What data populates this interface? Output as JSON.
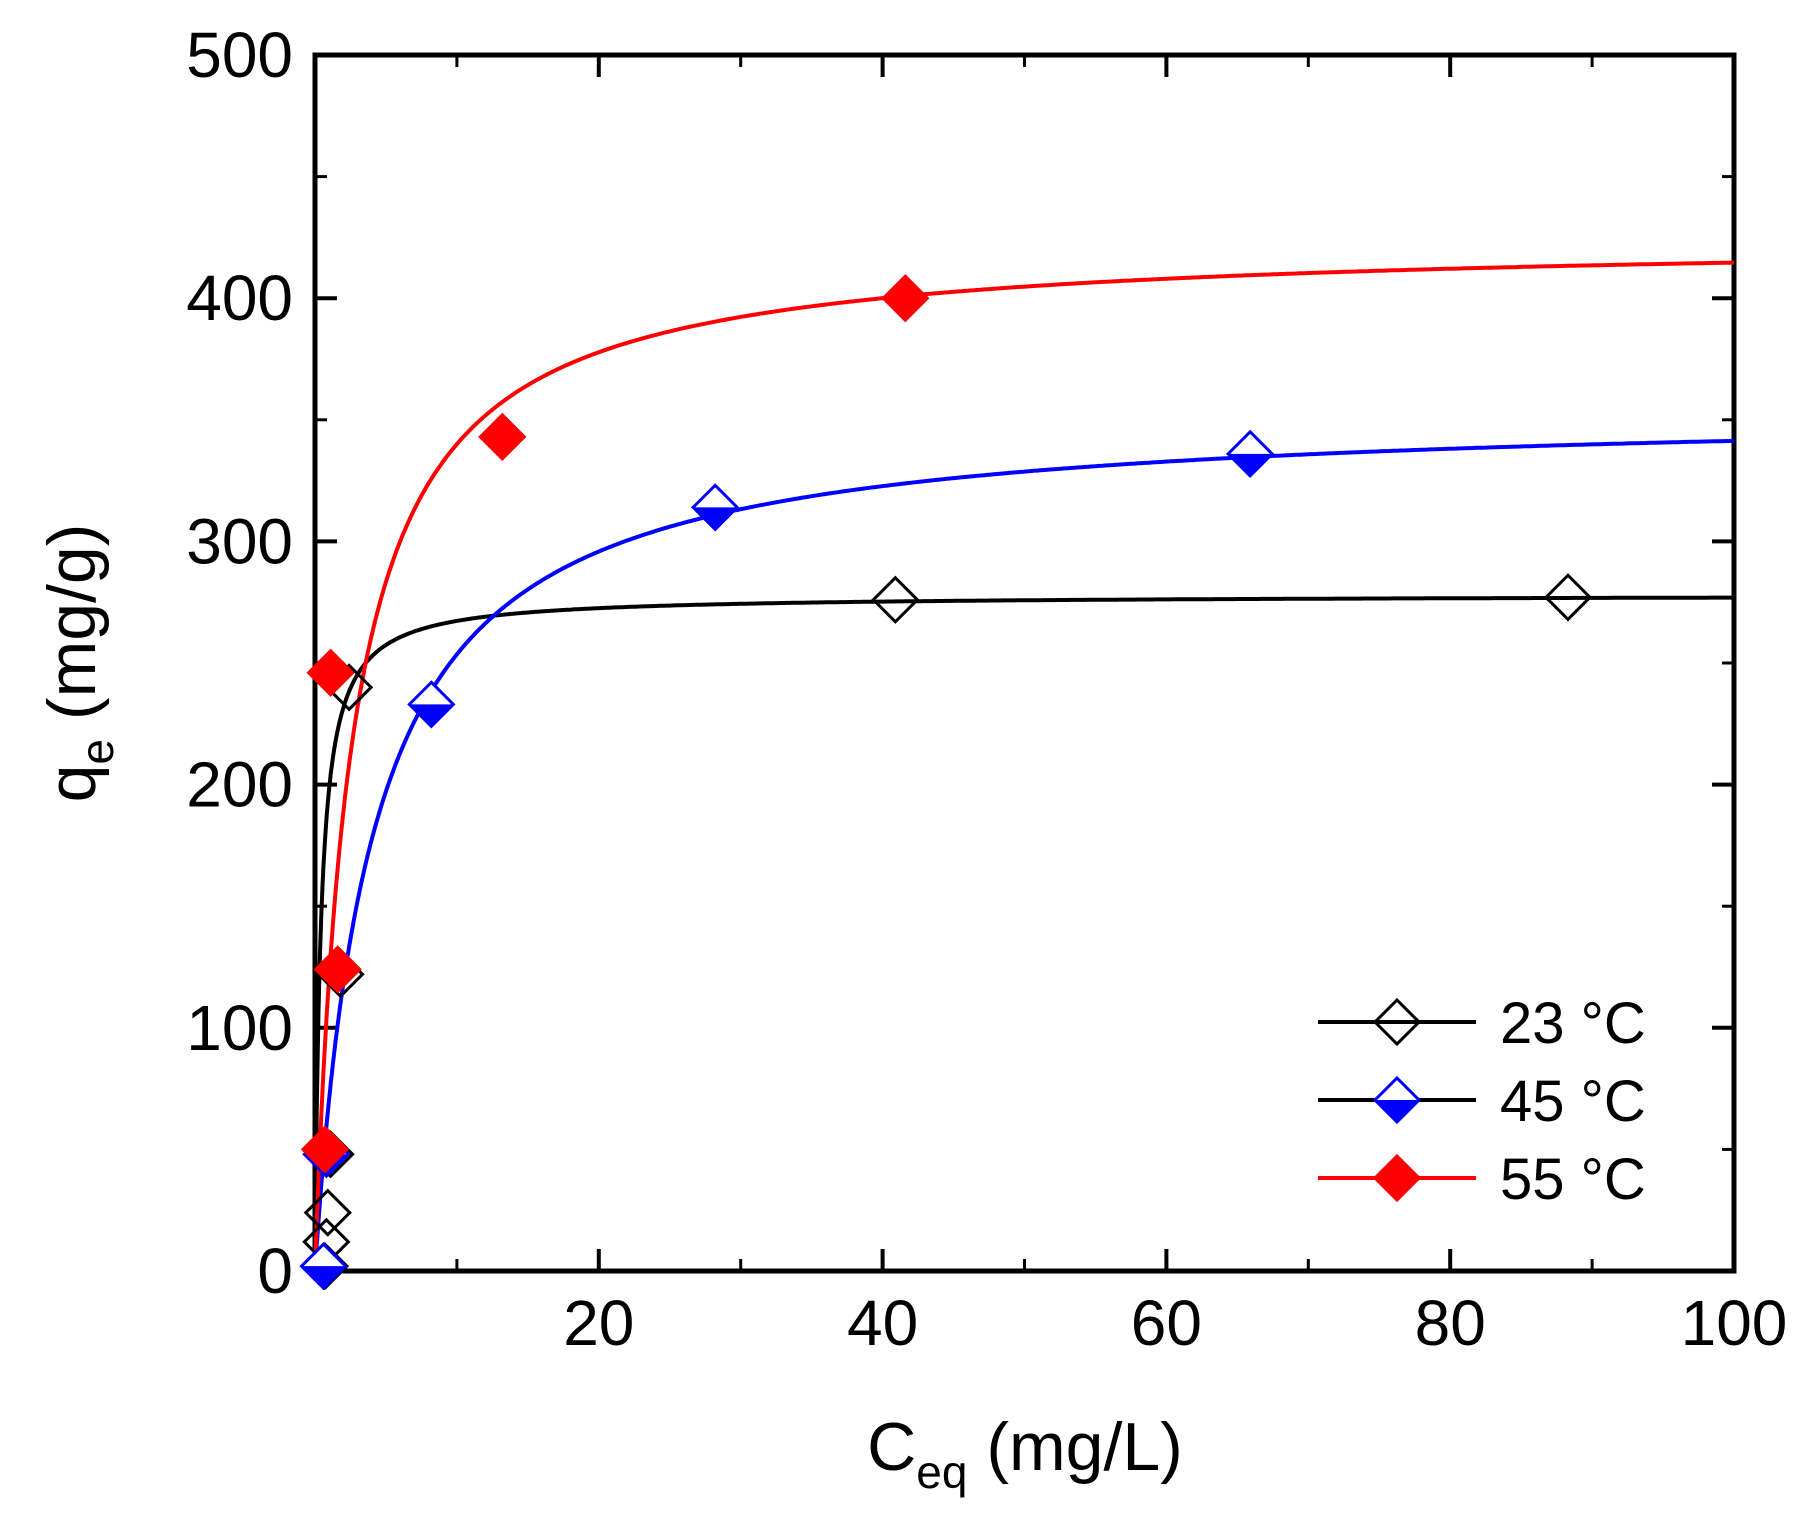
{
  "chart_data": {
    "type": "scatter",
    "title": "",
    "xlabel_main": "C",
    "xlabel_sub": "eq",
    "xlabel_unit": " (mg/L)",
    "ylabel_main": "q",
    "ylabel_sub": "e",
    "ylabel_unit": " (mg/g)",
    "xlim": [
      0,
      100
    ],
    "ylim": [
      0,
      500
    ],
    "x_ticks": [
      20,
      40,
      60,
      80,
      100
    ],
    "x_tick_labels": [
      "20",
      "40",
      "60",
      "80",
      "100"
    ],
    "y_ticks": [
      0,
      100,
      200,
      300,
      400,
      500
    ],
    "y_tick_labels": [
      "0",
      "100",
      "200",
      "300",
      "400",
      "500"
    ],
    "grid": false,
    "legend_position": "bottom-right",
    "series": [
      {
        "name": "23 °C",
        "color": "#000000",
        "line_color": "#000000",
        "marker": "diamond-open",
        "points": [
          [
            0.7,
            2
          ],
          [
            0.8,
            12
          ],
          [
            0.9,
            24
          ],
          [
            1.1,
            48
          ],
          [
            1.8,
            122
          ],
          [
            2.4,
            240
          ],
          [
            40.9,
            276
          ],
          [
            88.3,
            277
          ]
        ],
        "fit": {
          "model": "langmuir",
          "qmax": 278,
          "K": 2.5
        }
      },
      {
        "name": "45 °C",
        "color": "#0000ff",
        "line_color": "#0000ff",
        "marker": "diamond-half",
        "points": [
          [
            0.6,
            2
          ],
          [
            0.8,
            48
          ],
          [
            8.2,
            233
          ],
          [
            28.2,
            314
          ],
          [
            65.9,
            336
          ]
        ],
        "fit": {
          "model": "langmuir",
          "qmax": 355,
          "K": 0.25
        }
      },
      {
        "name": "55 °C",
        "color": "#ff0000",
        "line_color": "#ff0000",
        "marker": "diamond-filled",
        "points": [
          [
            0.7,
            50
          ],
          [
            1.6,
            124
          ],
          [
            1.1,
            246
          ],
          [
            13.2,
            343
          ],
          [
            41.6,
            400
          ]
        ],
        "fit": {
          "model": "langmuir",
          "qmax": 425,
          "K": 0.4
        }
      }
    ]
  }
}
